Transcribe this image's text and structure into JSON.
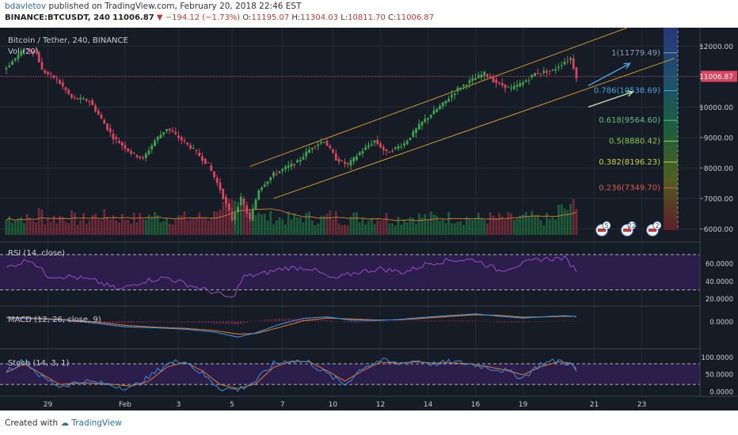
{
  "header": {
    "author": "bdavletov",
    "published_text": "published on TradingView.com, February 20, 2018 22:46 EST",
    "symbol": "BINANCE:BTCUSDT, 240",
    "last": "11006.87",
    "change": "▼ −194.12 (−1.73%)",
    "o_label": "O:",
    "open": "11195.07",
    "h_label": "H:",
    "high": "11304.03",
    "l_label": "L:",
    "low": "10811.70",
    "c_label": "C:",
    "close": "11006.87"
  },
  "footer": {
    "created_with": "Created with",
    "brand": "TradingView"
  },
  "colors": {
    "bg": "#161c26",
    "up": "#3fa34d",
    "down": "#d9455f",
    "channel": "#d99a2a",
    "indicator_bg": "#2b1e4a",
    "rsi": "#9a4cc9",
    "macd": "#3d8fe0",
    "signal": "#e07a30",
    "stoch_k": "#3d8fe0",
    "stoch_d": "#e07a30"
  },
  "chart_data": {
    "type": "candlestick",
    "title": "Bitcoin / Tether, 240, BINANCE",
    "volume_label": "Vol (20)",
    "price_range": [
      5700,
      12500
    ],
    "price_ticks": [
      "12000.00",
      "11000.00",
      "10000.00",
      "9000.00",
      "8000.00",
      "7000.00",
      "6000.00"
    ],
    "last_price_tag": "11006.87",
    "x_ticks": [
      "29",
      "Feb",
      "3",
      "5",
      "7",
      "10",
      "12",
      "14",
      "16",
      "19",
      "21",
      "23"
    ],
    "keypoints": [
      [
        0,
        11300
      ],
      [
        6,
        11900
      ],
      [
        10,
        11800
      ],
      [
        12,
        11200
      ],
      [
        17,
        10900
      ],
      [
        22,
        10300
      ],
      [
        28,
        10200
      ],
      [
        36,
        9000
      ],
      [
        42,
        8500
      ],
      [
        46,
        8300
      ],
      [
        50,
        8900
      ],
      [
        54,
        9300
      ],
      [
        58,
        9000
      ],
      [
        63,
        8600
      ],
      [
        68,
        8100
      ],
      [
        72,
        7300
      ],
      [
        76,
        6300
      ],
      [
        79,
        7000
      ],
      [
        82,
        6300
      ],
      [
        85,
        7300
      ],
      [
        90,
        7800
      ],
      [
        94,
        8000
      ],
      [
        98,
        8200
      ],
      [
        103,
        8700
      ],
      [
        107,
        8900
      ],
      [
        111,
        8300
      ],
      [
        115,
        8100
      ],
      [
        119,
        8500
      ],
      [
        124,
        8900
      ],
      [
        128,
        8500
      ],
      [
        134,
        8800
      ],
      [
        140,
        9500
      ],
      [
        147,
        10100
      ],
      [
        152,
        10600
      ],
      [
        157,
        10900
      ],
      [
        161,
        11100
      ],
      [
        165,
        10800
      ],
      [
        170,
        10600
      ],
      [
        174,
        10800
      ],
      [
        178,
        11100
      ],
      [
        184,
        11200
      ],
      [
        188,
        11500
      ],
      [
        190,
        11600
      ],
      [
        192,
        11000
      ]
    ],
    "channel": {
      "upper": {
        "from": {
          "bar": 82,
          "price": 8050
        },
        "to": {
          "bar": 209,
          "price": 12600
        }
      },
      "lower": {
        "from": {
          "bar": 90,
          "price": 7000
        },
        "to": {
          "bar": 225,
          "price": 11600
        }
      }
    },
    "arrows": [
      {
        "from": {
          "bar": 196,
          "price": 10700
        },
        "to": {
          "bar": 210,
          "price": 11430
        }
      },
      {
        "from": {
          "bar": 196,
          "price": 10000
        },
        "to": {
          "bar": 211,
          "price": 10500
        }
      }
    ],
    "fibonacci": [
      {
        "label": "1(11779.49)",
        "level": 11779.49,
        "color": "#8aa0b0"
      },
      {
        "label": "0.786(10538.69)",
        "level": 10538.69,
        "color": "#4aa3e0"
      },
      {
        "label": "0.618(9564.60)",
        "level": 9564.6,
        "color": "#5cc080"
      },
      {
        "label": "0.5(8880.42)",
        "level": 8880.42,
        "color": "#8ad04a"
      },
      {
        "label": "0.382(8196.23)",
        "level": 8196.23,
        "color": "#c8d040"
      },
      {
        "label": "0.236(7349.70)",
        "level": 7349.7,
        "color": "#e05a4a"
      }
    ],
    "event_badges": [
      "5",
      "22",
      "2"
    ],
    "rsi": {
      "label": "RSI (14, close)",
      "ticks": [
        "60.0000",
        "40.0000",
        "20.0000"
      ],
      "range": [
        17,
        78
      ],
      "upper_band": 70,
      "lower_band": 30,
      "keypoints": [
        [
          0,
          55
        ],
        [
          8,
          65
        ],
        [
          14,
          46
        ],
        [
          22,
          45
        ],
        [
          30,
          40
        ],
        [
          38,
          30
        ],
        [
          46,
          40
        ],
        [
          54,
          44
        ],
        [
          62,
          35
        ],
        [
          70,
          27
        ],
        [
          76,
          20
        ],
        [
          80,
          45
        ],
        [
          86,
          48
        ],
        [
          94,
          55
        ],
        [
          102,
          55
        ],
        [
          110,
          42
        ],
        [
          118,
          50
        ],
        [
          126,
          54
        ],
        [
          134,
          50
        ],
        [
          142,
          60
        ],
        [
          150,
          64
        ],
        [
          158,
          64
        ],
        [
          166,
          52
        ],
        [
          172,
          58
        ],
        [
          180,
          65
        ],
        [
          188,
          66
        ],
        [
          192,
          52
        ]
      ]
    },
    "macd": {
      "label": "MACD (12, 26, close, 9)",
      "ticks": [
        "0.0000"
      ],
      "range": [
        -750,
        350
      ],
      "macd_keypoints": [
        [
          0,
          120
        ],
        [
          10,
          80
        ],
        [
          20,
          40
        ],
        [
          30,
          -60
        ],
        [
          40,
          -180
        ],
        [
          50,
          -210
        ],
        [
          60,
          -260
        ],
        [
          70,
          -350
        ],
        [
          78,
          -520
        ],
        [
          84,
          -380
        ],
        [
          92,
          -100
        ],
        [
          100,
          100
        ],
        [
          108,
          150
        ],
        [
          116,
          40
        ],
        [
          124,
          30
        ],
        [
          132,
          60
        ],
        [
          140,
          130
        ],
        [
          150,
          200
        ],
        [
          158,
          250
        ],
        [
          166,
          170
        ],
        [
          174,
          110
        ],
        [
          182,
          160
        ],
        [
          188,
          190
        ],
        [
          192,
          160
        ]
      ],
      "signal_keypoints": [
        [
          0,
          140
        ],
        [
          10,
          110
        ],
        [
          20,
          60
        ],
        [
          30,
          -20
        ],
        [
          40,
          -130
        ],
        [
          50,
          -190
        ],
        [
          60,
          -230
        ],
        [
          70,
          -300
        ],
        [
          78,
          -420
        ],
        [
          84,
          -400
        ],
        [
          92,
          -200
        ],
        [
          100,
          20
        ],
        [
          108,
          110
        ],
        [
          116,
          80
        ],
        [
          124,
          50
        ],
        [
          132,
          50
        ],
        [
          140,
          100
        ],
        [
          150,
          170
        ],
        [
          158,
          220
        ],
        [
          166,
          200
        ],
        [
          174,
          140
        ],
        [
          182,
          150
        ],
        [
          188,
          170
        ],
        [
          192,
          170
        ]
      ]
    },
    "stoch": {
      "label": "Stoch (14, 3, 1)",
      "ticks": [
        "100.0000",
        "50.0000",
        "0.0000"
      ],
      "range": [
        -5,
        110
      ],
      "upper_band": 80,
      "lower_band": 20,
      "k_keypoints": [
        [
          0,
          60
        ],
        [
          6,
          90
        ],
        [
          12,
          40
        ],
        [
          18,
          15
        ],
        [
          26,
          30
        ],
        [
          34,
          20
        ],
        [
          42,
          10
        ],
        [
          48,
          40
        ],
        [
          54,
          80
        ],
        [
          60,
          90
        ],
        [
          66,
          50
        ],
        [
          72,
          10
        ],
        [
          78,
          5
        ],
        [
          84,
          30
        ],
        [
          90,
          80
        ],
        [
          96,
          90
        ],
        [
          102,
          85
        ],
        [
          108,
          50
        ],
        [
          114,
          20
        ],
        [
          120,
          70
        ],
        [
          126,
          90
        ],
        [
          132,
          80
        ],
        [
          138,
          90
        ],
        [
          144,
          80
        ],
        [
          150,
          85
        ],
        [
          156,
          80
        ],
        [
          162,
          70
        ],
        [
          168,
          60
        ],
        [
          174,
          40
        ],
        [
          180,
          80
        ],
        [
          186,
          90
        ],
        [
          190,
          80
        ],
        [
          192,
          55
        ]
      ],
      "d_keypoints": [
        [
          0,
          55
        ],
        [
          6,
          80
        ],
        [
          12,
          50
        ],
        [
          18,
          20
        ],
        [
          26,
          25
        ],
        [
          34,
          22
        ],
        [
          42,
          15
        ],
        [
          48,
          30
        ],
        [
          54,
          70
        ],
        [
          60,
          85
        ],
        [
          66,
          60
        ],
        [
          72,
          20
        ],
        [
          78,
          8
        ],
        [
          84,
          22
        ],
        [
          90,
          70
        ],
        [
          96,
          88
        ],
        [
          102,
          86
        ],
        [
          108,
          60
        ],
        [
          114,
          30
        ],
        [
          120,
          60
        ],
        [
          126,
          85
        ],
        [
          132,
          82
        ],
        [
          138,
          86
        ],
        [
          144,
          82
        ],
        [
          150,
          83
        ],
        [
          156,
          80
        ],
        [
          162,
          72
        ],
        [
          168,
          62
        ],
        [
          174,
          48
        ],
        [
          180,
          72
        ],
        [
          186,
          86
        ],
        [
          190,
          82
        ],
        [
          192,
          65
        ]
      ]
    }
  }
}
